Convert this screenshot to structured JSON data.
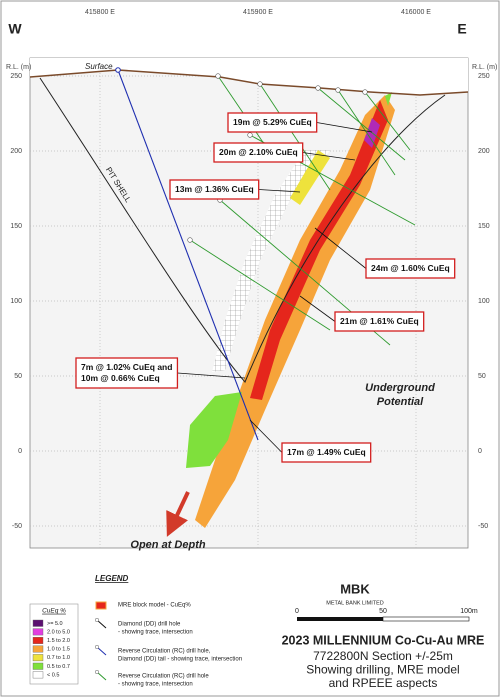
{
  "header": {
    "west": "W",
    "east": "E"
  },
  "easting_ticks": [
    {
      "value": 415800,
      "label": "415800 E"
    },
    {
      "value": 415900,
      "label": "415900 E"
    },
    {
      "value": 416000,
      "label": "416000 E"
    }
  ],
  "rl_label": "R.L. (m)",
  "rl_ticks": [
    250,
    200,
    150,
    100,
    50,
    0,
    -50
  ],
  "labels": {
    "surface": "Surface",
    "pit_shell": "PIT SHELL",
    "underground": [
      "Underground",
      "Potential"
    ],
    "open_at_depth": "Open at Depth"
  },
  "intercepts": [
    {
      "lines": [
        "19m @ 5.29% CuEq"
      ]
    },
    {
      "lines": [
        "20m @ 2.10% CuEq"
      ]
    },
    {
      "lines": [
        "13m @ 1.36% CuEq"
      ]
    },
    {
      "lines": [
        "24m @ 1.60% CuEq"
      ]
    },
    {
      "lines": [
        "21m @ 1.61% CuEq"
      ]
    },
    {
      "lines": [
        "7m @ 1.02% CuEq and",
        "10m @ 0.66% CuEq"
      ]
    },
    {
      "lines": [
        "17m @ 1.49% CuEq"
      ]
    }
  ],
  "legend": {
    "title": "LEGEND",
    "scale_title": "CuEq %",
    "classes": [
      {
        "label": ">= 5.0",
        "color": "#5b1070"
      },
      {
        "label": "2.0 to 5.0",
        "color": "#e23ee0"
      },
      {
        "label": "1.5 to 2.0",
        "color": "#e5261c"
      },
      {
        "label": "1.0 to 1.5",
        "color": "#f6a43a"
      },
      {
        "label": "0.7 to 1.0",
        "color": "#eee23c"
      },
      {
        "label": "0.5 to 0.7",
        "color": "#7fe03c"
      },
      {
        "label": "< 0.5",
        "color": "#ffffff"
      }
    ],
    "items": [
      {
        "lines": [
          "MRE block model - CuEq%"
        ]
      },
      {
        "lines": [
          "Diamond (DD) drill hole",
          "- showing trace, intersection"
        ]
      },
      {
        "lines": [
          "Reverse Circulation (RC) drill hole,",
          "Diamond (DD) tail - showing trace, intersection"
        ]
      },
      {
        "lines": [
          "Reverse Circulation (RC) drill hole",
          "- showing trace, intersection"
        ]
      }
    ]
  },
  "logo": {
    "mark": "MBK",
    "name": "METAL BANK LIMITED"
  },
  "scale_bar": [
    "0",
    "50",
    "100m"
  ],
  "title_block": {
    "title": "2023 MILLENNIUM Co-Cu-Au MRE",
    "lines": [
      "7722800N Section +/-25m",
      "Showing drilling, MRE model",
      "and RPEEE aspects"
    ]
  }
}
